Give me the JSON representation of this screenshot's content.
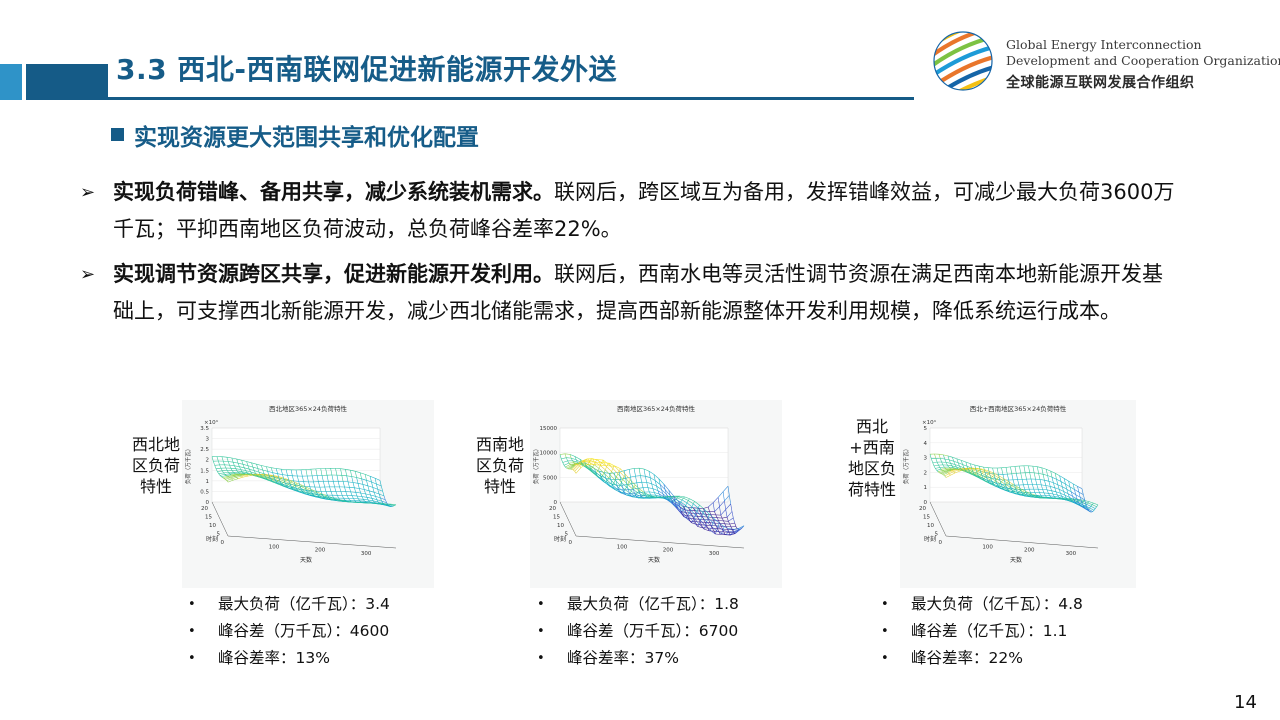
{
  "header": {
    "title": "3.3 西北-西南联网促进新能源开发外送",
    "org_en_line1": "Global Energy Interconnection",
    "org_en_line2": "Development and Cooperation Organization",
    "org_cn": "全球能源互联网发展合作组织",
    "accent_dark": "#155b87",
    "accent_light": "#2f93c8"
  },
  "subheading": "实现资源更大范围共享和优化配置",
  "bullets": [
    {
      "bold": "实现负荷错峰、备用共享，减少系统装机需求。",
      "text": "联网后，跨区域互为备用，发挥错峰效益，可减少最大负荷3600万千瓦；平抑西南地区负荷波动，总负荷峰谷差率22%。"
    },
    {
      "bold": "实现调节资源跨区共享，促进新能源开发利用。",
      "text": "联网后，西南水电等灵活性调节资源在满足西南本地新能源开发基础上，可支撑西北新能源开发，减少西北储能需求，提高西部新能源整体开发利用规模，降低系统运行成本。"
    }
  ],
  "charts": [
    {
      "label": "西北地区负荷特性",
      "plot_title": "西北地区365×24负荷特性",
      "exponent": "×10⁴",
      "z_ticks": [
        "3.5",
        "3",
        "2.5",
        "2",
        "1.5",
        "1",
        "0.5",
        "0"
      ],
      "hour_ticks": [
        "20",
        "15",
        "10",
        "5",
        "0"
      ],
      "day_ticks": [
        "100",
        "200",
        "300"
      ],
      "zlabel": "负荷（万千瓦）",
      "hour_label": "时刻",
      "day_label": "天数",
      "stats": [
        "最大负荷（亿千瓦）：3.4",
        "峰谷差（万千瓦）：4600",
        "峰谷差率：13%"
      ]
    },
    {
      "label": "西南地区负荷特性",
      "plot_title": "西南地区365×24负荷特性",
      "exponent": "",
      "z_ticks": [
        "15000",
        "10000",
        "5000",
        "0"
      ],
      "hour_ticks": [
        "20",
        "15",
        "10",
        "5",
        "0"
      ],
      "day_ticks": [
        "100",
        "200",
        "300"
      ],
      "zlabel": "负荷（万千瓦）",
      "hour_label": "时刻",
      "day_label": "天数",
      "stats": [
        "最大负荷（亿千瓦）：1.8",
        "峰谷差（万千瓦）：6700",
        "峰谷差率：37%"
      ]
    },
    {
      "label": "西北+西南地区负荷特性",
      "plot_title": "西北+西南地区365×24负荷特性",
      "exponent": "×10⁴",
      "z_ticks": [
        "5",
        "4",
        "3",
        "2",
        "1",
        "0"
      ],
      "hour_ticks": [
        "20",
        "15",
        "10",
        "5",
        "0"
      ],
      "day_ticks": [
        "100",
        "200",
        "300"
      ],
      "zlabel": "负荷（万千瓦）",
      "hour_label": "时刻",
      "day_label": "天数",
      "stats": [
        "最大负荷（亿千瓦）：4.8",
        "峰谷差（亿千瓦）：1.1",
        "峰谷差率：22%"
      ]
    }
  ],
  "bullet_glyph": "•",
  "arrow_glyph": "➢",
  "page_number": "14"
}
